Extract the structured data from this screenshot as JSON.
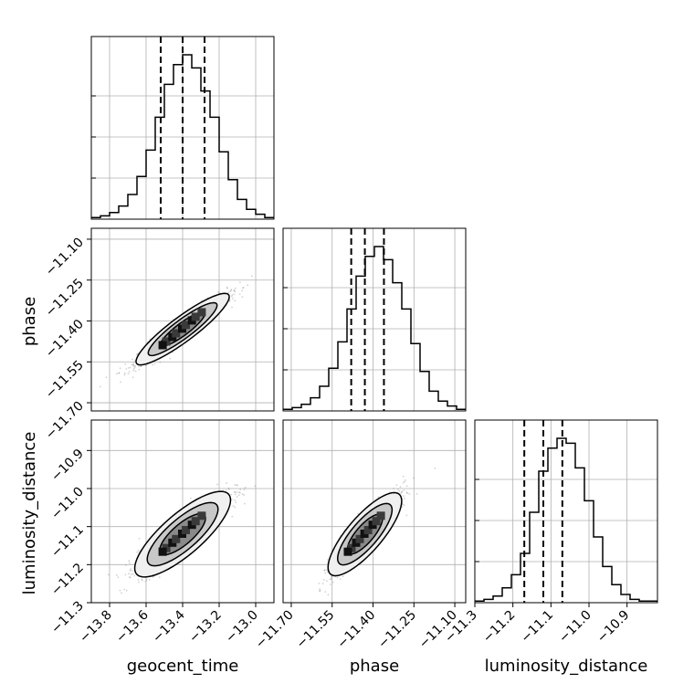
{
  "chart_data": {
    "type": "corner",
    "parameters": [
      "geocent_time",
      "phase",
      "luminosity_distance"
    ],
    "axis_labels": {
      "x": [
        "geocent_time",
        "phase",
        "luminosity_distance"
      ],
      "y": [
        "phase",
        "luminosity_distance"
      ]
    },
    "ranges": {
      "geocent_time": [
        -13.9,
        -12.9
      ],
      "phase": [
        -11.73,
        -11.06
      ],
      "luminosity_distance": [
        -11.3,
        -10.82
      ]
    },
    "ticks": {
      "geocent_time": [
        -13.8,
        -13.6,
        -13.4,
        -13.2,
        -13.0
      ],
      "phase": [
        -11.7,
        -11.55,
        -11.4,
        -11.25,
        -11.1
      ],
      "luminosity_distance": [
        -11.3,
        -11.2,
        -11.1,
        -11.0,
        -10.9
      ]
    },
    "tick_labels": {
      "geocent_time": [
        "−13.8",
        "−13.6",
        "−13.4",
        "−13.2",
        "−13.0"
      ],
      "phase": [
        "−11.70",
        "−11.55",
        "−11.40",
        "−11.25",
        "−11.10"
      ],
      "luminosity_distance": [
        "−11.3",
        "−11.2",
        "−11.1",
        "−11.0",
        "−10.9"
      ]
    },
    "quantiles": {
      "geocent_time": [
        -13.52,
        -13.4,
        -13.28
      ],
      "phase": [
        -11.48,
        -11.43,
        -11.36
      ],
      "luminosity_distance": [
        -11.17,
        -11.12,
        -11.07
      ]
    },
    "histograms": {
      "geocent_time": {
        "edges_range": [
          -13.9,
          -12.9
        ],
        "bins": 20,
        "counts": [
          0.01,
          0.02,
          0.04,
          0.08,
          0.15,
          0.26,
          0.42,
          0.62,
          0.82,
          0.94,
          1.0,
          0.92,
          0.78,
          0.62,
          0.41,
          0.24,
          0.12,
          0.06,
          0.03,
          0.01
        ]
      },
      "phase": {
        "edges_range": [
          -11.73,
          -11.06
        ],
        "bins": 20,
        "counts": [
          0.01,
          0.02,
          0.04,
          0.08,
          0.15,
          0.26,
          0.42,
          0.62,
          0.82,
          0.94,
          1.0,
          0.92,
          0.78,
          0.62,
          0.41,
          0.24,
          0.12,
          0.06,
          0.03,
          0.01
        ]
      },
      "luminosity_distance": {
        "edges_range": [
          -11.3,
          -10.82
        ],
        "bins": 20,
        "counts": [
          0.01,
          0.02,
          0.04,
          0.09,
          0.17,
          0.3,
          0.55,
          0.8,
          0.94,
          1.0,
          0.97,
          0.82,
          0.62,
          0.4,
          0.22,
          0.11,
          0.05,
          0.02,
          0.01,
          0.01
        ]
      }
    },
    "correlations": {
      "geocent_time__phase": 0.95,
      "geocent_time__luminosity_distance": 0.9,
      "phase__luminosity_distance": 0.9
    },
    "grid": true,
    "colors": {
      "scatter": "#7f7f7f",
      "line": "#000000",
      "grid": "#b0b0b0",
      "contour_fill": "#f0f0f0"
    }
  }
}
